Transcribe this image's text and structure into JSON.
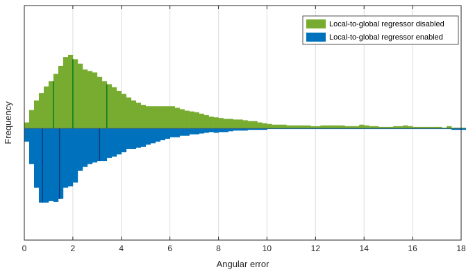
{
  "chart_data": {
    "type": "bar",
    "subtype": "mirrored-histogram",
    "title": "",
    "xlabel": "Angular error",
    "ylabel": "Frequency",
    "xlim": [
      0,
      18
    ],
    "ylim": [
      -150,
      150
    ],
    "xticks": [
      0,
      2,
      4,
      6,
      8,
      10,
      12,
      14,
      16,
      18
    ],
    "xtick_labels": [
      "0",
      "2",
      "4",
      "6",
      "8",
      "10",
      "12",
      "14",
      "16",
      "18"
    ],
    "grid": true,
    "legend_position": "top-right",
    "bin_width": 0.2,
    "bin_start": 0,
    "series": [
      {
        "name": "Local-to-global regressor disabled",
        "direction": "up",
        "color": "#77ac30",
        "marker_color": "#0b7a1f",
        "values": [
          8,
          25,
          38,
          48,
          57,
          64,
          74,
          85,
          97,
          100,
          94,
          88,
          80,
          78,
          76,
          70,
          64,
          60,
          56,
          51,
          47,
          42,
          38,
          35,
          32,
          30,
          30,
          30,
          30,
          30,
          30,
          28,
          26,
          24,
          23,
          22,
          20,
          18,
          16,
          15,
          14,
          13,
          13,
          12,
          12,
          11,
          10,
          10,
          8,
          7,
          6,
          5,
          5,
          5,
          4,
          4,
          4,
          4,
          4,
          3,
          3,
          4,
          4,
          4,
          4,
          4,
          3,
          3,
          3,
          5,
          4,
          3,
          3,
          2,
          2,
          2,
          3,
          3,
          4,
          3,
          2,
          2,
          2,
          2,
          2,
          2,
          1,
          3,
          1,
          1,
          1,
          0,
          3,
          2,
          2,
          2,
          1,
          1,
          1,
          1,
          1,
          2,
          3,
          2,
          1,
          0,
          0,
          0,
          0,
          0,
          0,
          0,
          0,
          0,
          0,
          0,
          0,
          0,
          0,
          0,
          0,
          0,
          0,
          1,
          1,
          1,
          1,
          1,
          1,
          1,
          1,
          1,
          1,
          1,
          1,
          1,
          1,
          1,
          1,
          1,
          0,
          0,
          0,
          0,
          0,
          0,
          0,
          0,
          0,
          0,
          0,
          0,
          0,
          0,
          0,
          0,
          0,
          0,
          0,
          0,
          0,
          0,
          0,
          0,
          0,
          0,
          0,
          0,
          0,
          0,
          0,
          0,
          0,
          0,
          0,
          0,
          0,
          0,
          0
        ],
        "median_markers": [
          1.2,
          2.0,
          3.4
        ]
      },
      {
        "name": "Local-to-global regressor enabled",
        "direction": "down",
        "color": "#0072bd",
        "marker_color": "#0b3a7a",
        "values": [
          18,
          48,
          80,
          100,
          100,
          98,
          99,
          95,
          80,
          78,
          73,
          57,
          52,
          48,
          46,
          44,
          44,
          40,
          38,
          35,
          32,
          28,
          28,
          26,
          25,
          22,
          20,
          18,
          16,
          14,
          12,
          12,
          10,
          10,
          8,
          8,
          7,
          6,
          5,
          6,
          5,
          5,
          4,
          3,
          3,
          3,
          2,
          2,
          2,
          2,
          1,
          1,
          1,
          1,
          1,
          1,
          1,
          1,
          1,
          1,
          1,
          1,
          1,
          1,
          1,
          1,
          1,
          1,
          1,
          1,
          1,
          1,
          1,
          1,
          1,
          1,
          1,
          1,
          1,
          1,
          1,
          1,
          1,
          1,
          1,
          1,
          1,
          1,
          2,
          2,
          2,
          2,
          1,
          1,
          1,
          1,
          1,
          1,
          1,
          1,
          1,
          1,
          1,
          1,
          0,
          0,
          0,
          0,
          0,
          0,
          0,
          0,
          0,
          0,
          0,
          0,
          0,
          0,
          0,
          0,
          0,
          0,
          0,
          0,
          0,
          0,
          1,
          1,
          1,
          1,
          1,
          1,
          1,
          1,
          1,
          0,
          0,
          0,
          0,
          0,
          0,
          0,
          0,
          0,
          0,
          0,
          0,
          0,
          0,
          0,
          0,
          0,
          0,
          0,
          0,
          0,
          0,
          0,
          0,
          0,
          0,
          0,
          0,
          0,
          0,
          0,
          0,
          0,
          0,
          0,
          0,
          0,
          0,
          0,
          0,
          0,
          0,
          0
        ],
        "median_markers": [
          0.75,
          1.45,
          3.1
        ]
      }
    ]
  }
}
